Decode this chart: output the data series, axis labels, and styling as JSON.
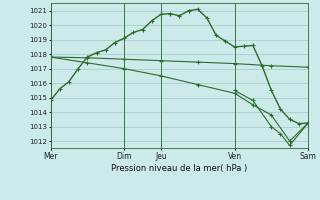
{
  "background_color": "#cceaea",
  "grid_color": "#aacccc",
  "line_color": "#2d6a2d",
  "xlabel": "Pression niveau de la mer( hPa )",
  "ylim": [
    1011.5,
    1021.5
  ],
  "yticks": [
    1012,
    1013,
    1014,
    1015,
    1016,
    1017,
    1018,
    1019,
    1020,
    1021
  ],
  "xlim": [
    0,
    14
  ],
  "xtick_labels": [
    "Mer",
    "Dim",
    "Jeu",
    "Ven",
    "Sam"
  ],
  "xtick_positions": [
    0,
    4,
    6,
    10,
    14
  ],
  "vline_positions": [
    0,
    4,
    6,
    10,
    14
  ],
  "series1": {
    "x": [
      0,
      0.5,
      1,
      1.5,
      2,
      2.5,
      3,
      3.5,
      4,
      4.5,
      5,
      5.5,
      6,
      6.5,
      7,
      7.5,
      8,
      8.5,
      9,
      9.5,
      10,
      10.5,
      11,
      11.5,
      12,
      12.5,
      13,
      13.5,
      14
    ],
    "y": [
      1014.8,
      1015.6,
      1016.1,
      1017.0,
      1017.8,
      1018.1,
      1018.3,
      1018.8,
      1019.1,
      1019.5,
      1019.7,
      1020.3,
      1020.75,
      1020.8,
      1020.65,
      1021.0,
      1021.1,
      1020.5,
      1019.3,
      1018.9,
      1018.5,
      1018.55,
      1018.6,
      1017.2,
      1015.5,
      1014.2,
      1013.5,
      1013.2,
      1013.25
    ]
  },
  "series2": {
    "x": [
      0,
      2,
      4,
      6,
      8,
      10,
      12,
      14
    ],
    "y": [
      1017.8,
      1017.75,
      1017.65,
      1017.55,
      1017.45,
      1017.35,
      1017.2,
      1017.1
    ]
  },
  "series3": {
    "x": [
      0,
      2,
      4,
      6,
      8,
      10,
      11,
      12,
      13,
      14
    ],
    "y": [
      1017.8,
      1017.4,
      1017.0,
      1016.5,
      1015.9,
      1015.3,
      1014.5,
      1013.8,
      1012.0,
      1013.25
    ]
  },
  "series4": {
    "x": [
      10,
      11,
      12,
      12.5,
      13,
      14
    ],
    "y": [
      1015.5,
      1014.8,
      1013.0,
      1012.5,
      1011.7,
      1013.25
    ]
  }
}
